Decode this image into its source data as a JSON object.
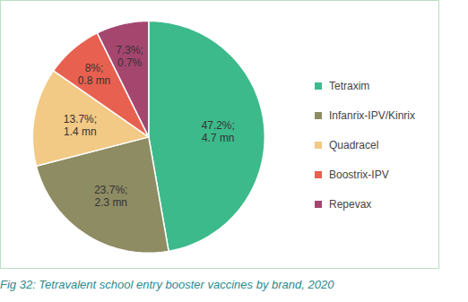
{
  "chart_data": {
    "type": "pie",
    "title": "Fig 32: Tetravalent school entry booster vaccines by brand, 2020",
    "categories": [
      "Tetraxim",
      "Infanrix-IPV/Kinrix",
      "Quadracel",
      "Boostrix-IPV",
      "Repevax"
    ],
    "values": [
      47.2,
      23.7,
      13.7,
      8,
      7.3
    ],
    "value_labels": [
      "47.2%; 4.7 mn",
      "23.7%; 2.3 mn",
      "13.7%; 1.4 mn",
      "8%; 0.8 mn",
      "7.3%; 0.7%"
    ],
    "colors": [
      "#3dba8c",
      "#8e8c63",
      "#f2c985",
      "#e8604f",
      "#a5466f"
    ],
    "data_labels": true,
    "legend": "right",
    "tick_labels": false
  }
}
